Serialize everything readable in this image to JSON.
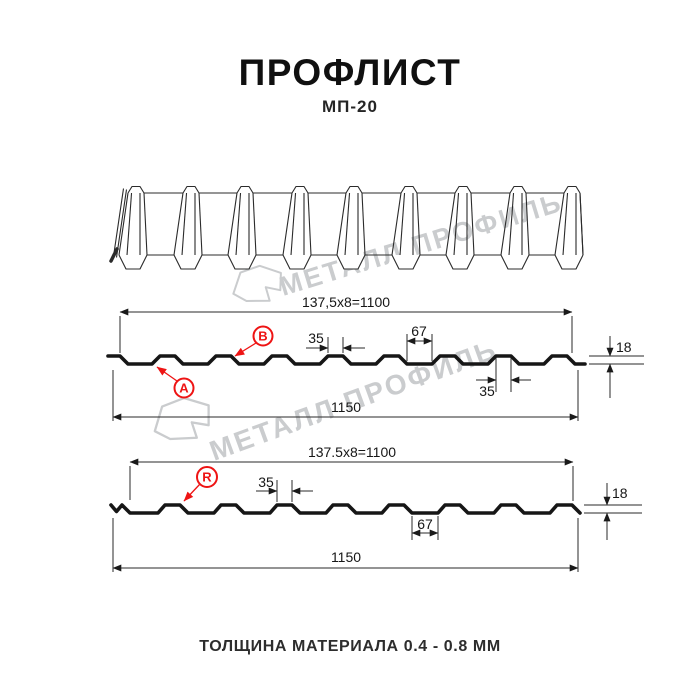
{
  "header": {
    "title": "ПРОФЛИСТ",
    "subtitle": "МП-20"
  },
  "footer": {
    "note": "ТОЛЩИНА МАТЕРИАЛА 0.4 - 0.8 ММ"
  },
  "watermark": {
    "brand": "МЕТАЛЛ ПРОФИЛЬ",
    "color": "#caccce"
  },
  "colors": {
    "line": "#161616",
    "accent_red": "#ee1414",
    "background": "#ffffff"
  },
  "sections": {
    "top": {
      "coverage": "137,5x8=1100",
      "overall": "1150",
      "crest_width": "35",
      "valley_width": "67",
      "height": "18",
      "crest_width_bottom": "35",
      "point_a": "A",
      "point_b": "B"
    },
    "bottom": {
      "coverage": "137.5x8=1100",
      "overall": "1150",
      "crest_width": "35",
      "valley_width": "67",
      "height": "18",
      "point_r": "R"
    }
  }
}
